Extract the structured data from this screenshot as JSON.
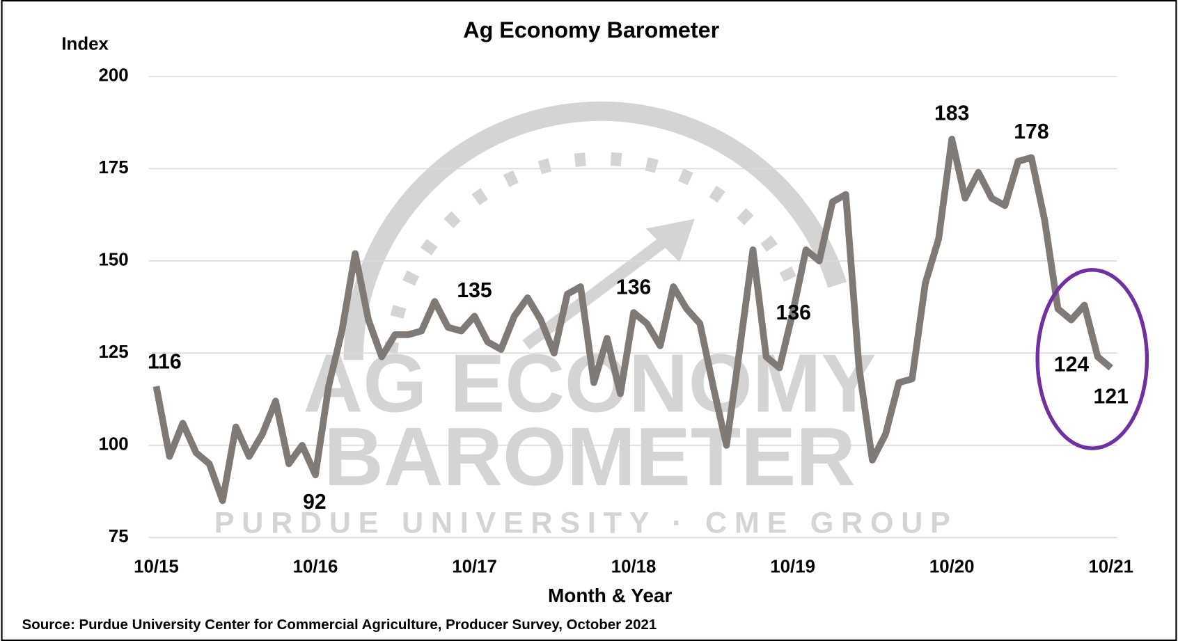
{
  "chart_data": {
    "type": "line",
    "title": "Ag Economy Barometer",
    "y_label": "Index",
    "x_label": "Month & Year",
    "source": "Source: Purdue University Center for Commercial Agriculture, Producer Survey, October 2021",
    "watermark_lines": [
      "AG ECONOMY",
      "BAROMETER",
      "PURDUE UNIVERSITY  ·  CME GROUP"
    ],
    "categories": [
      "10/15",
      null,
      null,
      null,
      null,
      null,
      null,
      null,
      null,
      null,
      null,
      null,
      "10/16",
      null,
      null,
      null,
      null,
      null,
      null,
      null,
      null,
      null,
      null,
      null,
      "10/17",
      null,
      null,
      null,
      null,
      null,
      null,
      null,
      null,
      null,
      null,
      null,
      "10/18",
      null,
      null,
      null,
      null,
      null,
      null,
      null,
      null,
      null,
      null,
      null,
      "10/19",
      null,
      null,
      null,
      null,
      null,
      null,
      null,
      null,
      null,
      null,
      null,
      "10/20",
      null,
      null,
      null,
      null,
      null,
      null,
      null,
      null,
      null,
      null,
      null,
      "10/21"
    ],
    "series": [
      {
        "name": "Ag Economy Barometer",
        "color": "#7f7a76",
        "values": [
          116,
          97,
          106,
          98,
          95,
          85,
          105,
          97,
          103,
          112,
          95,
          100,
          92,
          116,
          131,
          152,
          134,
          124,
          130,
          130,
          131,
          139,
          132,
          131,
          135,
          128,
          126,
          135,
          140,
          134,
          125,
          141,
          143,
          117,
          129,
          114,
          136,
          133,
          127,
          143,
          137,
          133,
          116,
          100,
          126,
          153,
          124,
          121,
          136,
          153,
          150,
          166,
          168,
          121,
          96,
          103,
          117,
          118,
          144,
          156,
          183,
          167,
          174,
          167,
          165,
          177,
          178,
          161,
          137,
          134,
          138,
          124,
          121
        ],
        "value_labels": [
          "116",
          null,
          null,
          null,
          null,
          null,
          null,
          null,
          null,
          null,
          null,
          null,
          "92",
          null,
          null,
          null,
          null,
          null,
          null,
          null,
          null,
          null,
          null,
          null,
          "135",
          null,
          null,
          null,
          null,
          null,
          null,
          null,
          null,
          null,
          null,
          null,
          "136",
          null,
          null,
          null,
          null,
          null,
          null,
          null,
          null,
          null,
          null,
          null,
          "136",
          null,
          null,
          null,
          null,
          null,
          null,
          null,
          null,
          null,
          null,
          null,
          "183",
          null,
          null,
          null,
          null,
          null,
          "178",
          null,
          null,
          null,
          null,
          "124",
          "121"
        ]
      }
    ],
    "ylim": [
      75,
      200
    ],
    "yticks": [
      75,
      100,
      125,
      150,
      175,
      200
    ],
    "grid": true
  }
}
